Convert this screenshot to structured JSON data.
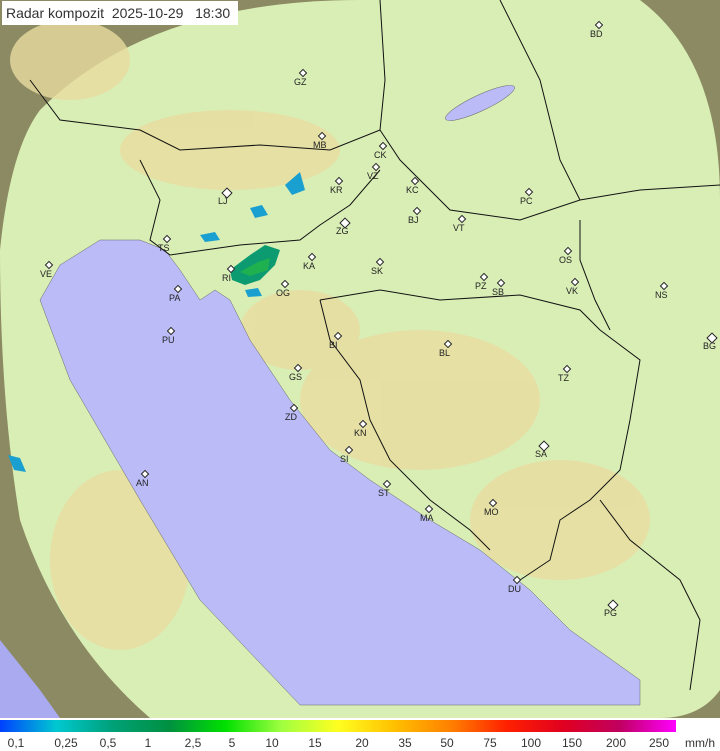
{
  "title": "Radar kompozit  2025-10-29   18:30",
  "colors": {
    "sea": "#bbbbf8",
    "land": "#d9eeb5",
    "outside": "#8c8a62",
    "border": "#111111",
    "echo_low": "#1aa0d0",
    "echo_mid": "#0c9a70",
    "echo_high": "#1fb050"
  },
  "cities": [
    {
      "code": "BD"
    },
    {
      "code": "GZ"
    },
    {
      "code": "MB"
    },
    {
      "code": "CK"
    },
    {
      "code": "VZ"
    },
    {
      "code": "KR"
    },
    {
      "code": "KC"
    },
    {
      "code": "PC"
    },
    {
      "code": "LJ",
      "capital": true
    },
    {
      "code": "BJ"
    },
    {
      "code": "VT"
    },
    {
      "code": "ZG",
      "capital": true
    },
    {
      "code": "TS"
    },
    {
      "code": "VE"
    },
    {
      "code": "KA"
    },
    {
      "code": "RI"
    },
    {
      "code": "SK"
    },
    {
      "code": "OS"
    },
    {
      "code": "PZ"
    },
    {
      "code": "SB"
    },
    {
      "code": "VK"
    },
    {
      "code": "NS"
    },
    {
      "code": "PA"
    },
    {
      "code": "OG"
    },
    {
      "code": "PU"
    },
    {
      "code": "BG",
      "capital": true
    },
    {
      "code": "BI"
    },
    {
      "code": "BL"
    },
    {
      "code": "TZ"
    },
    {
      "code": "GS"
    },
    {
      "code": "ZD"
    },
    {
      "code": "KN"
    },
    {
      "code": "SA",
      "capital": true
    },
    {
      "code": "SI"
    },
    {
      "code": "AN"
    },
    {
      "code": "ST"
    },
    {
      "code": "MO"
    },
    {
      "code": "MA"
    },
    {
      "code": "DU"
    },
    {
      "code": "PG",
      "capital": true
    }
  ],
  "legend": {
    "unit": "mm/h",
    "values": [
      "0,1",
      "0,25",
      "0,5",
      "1",
      "2,5",
      "5",
      "10",
      "15",
      "20",
      "35",
      "50",
      "75",
      "100",
      "150",
      "200",
      "250"
    ],
    "gradient": [
      "#0040ff",
      "#00c8d0",
      "#00a078",
      "#009040",
      "#00e000",
      "#a0ff40",
      "#ffff20",
      "#ffc000",
      "#ff8000",
      "#ff2000",
      "#e00020",
      "#c00060",
      "#ff00ff"
    ]
  }
}
